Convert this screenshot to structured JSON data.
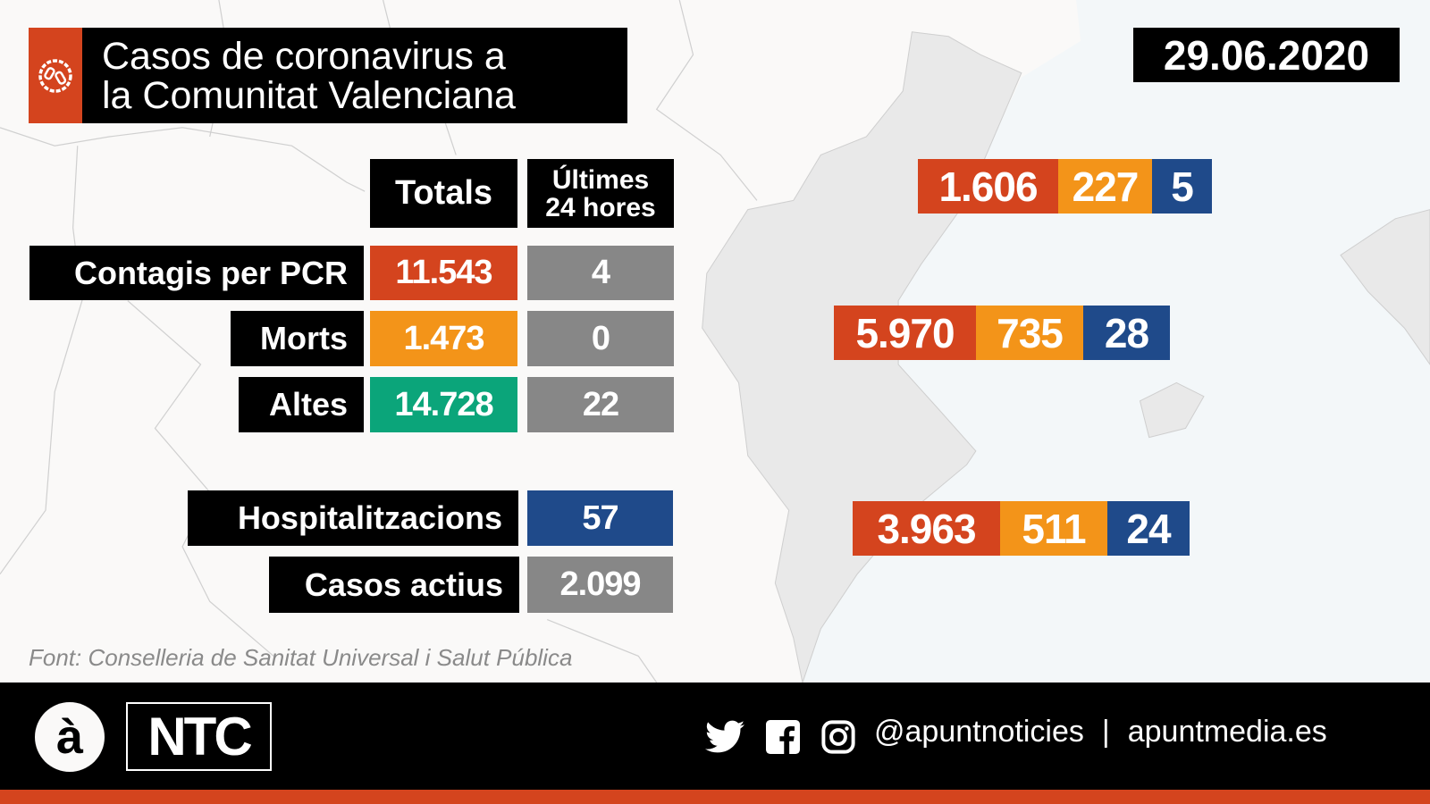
{
  "colors": {
    "red": "#D4441E",
    "orange": "#F39419",
    "blue": "#1F4A8A",
    "green": "#0BA57A",
    "grey": "#878787"
  },
  "header": {
    "icon": "virus-icon",
    "title_line1": "Casos de coronavirus a",
    "title_line2": "la Comunitat Valenciana",
    "date": "29.06.2020"
  },
  "table": {
    "col_totals": "Totals",
    "col_24h_line1": "Últimes",
    "col_24h_line2": "24 hores",
    "rows": [
      {
        "label": "Contagis per PCR",
        "total": "11.543",
        "last24": "4"
      },
      {
        "label": "Morts",
        "total": "1.473",
        "last24": "0"
      },
      {
        "label": "Altes",
        "total": "14.728",
        "last24": "22"
      }
    ],
    "hospitalitzacions": {
      "label": "Hospitalitzacions",
      "value": "57"
    },
    "casos_actius": {
      "label": "Casos actius",
      "value": "2.099"
    }
  },
  "provinces": [
    {
      "contagis": "1.606",
      "morts": "227",
      "hosp": "5"
    },
    {
      "contagis": "5.970",
      "morts": "735",
      "hosp": "28"
    },
    {
      "contagis": "3.963",
      "morts": "511",
      "hosp": "24"
    }
  ],
  "source": "Font: Conselleria de Sanitat Universal i Salut Pública",
  "footer": {
    "logo_a": "à",
    "logo_ntc": "NTC",
    "handle": "@apuntnoticies",
    "separator": "|",
    "site": "apuntmedia.es",
    "icons": [
      "twitter-icon",
      "facebook-icon",
      "instagram-icon"
    ]
  }
}
